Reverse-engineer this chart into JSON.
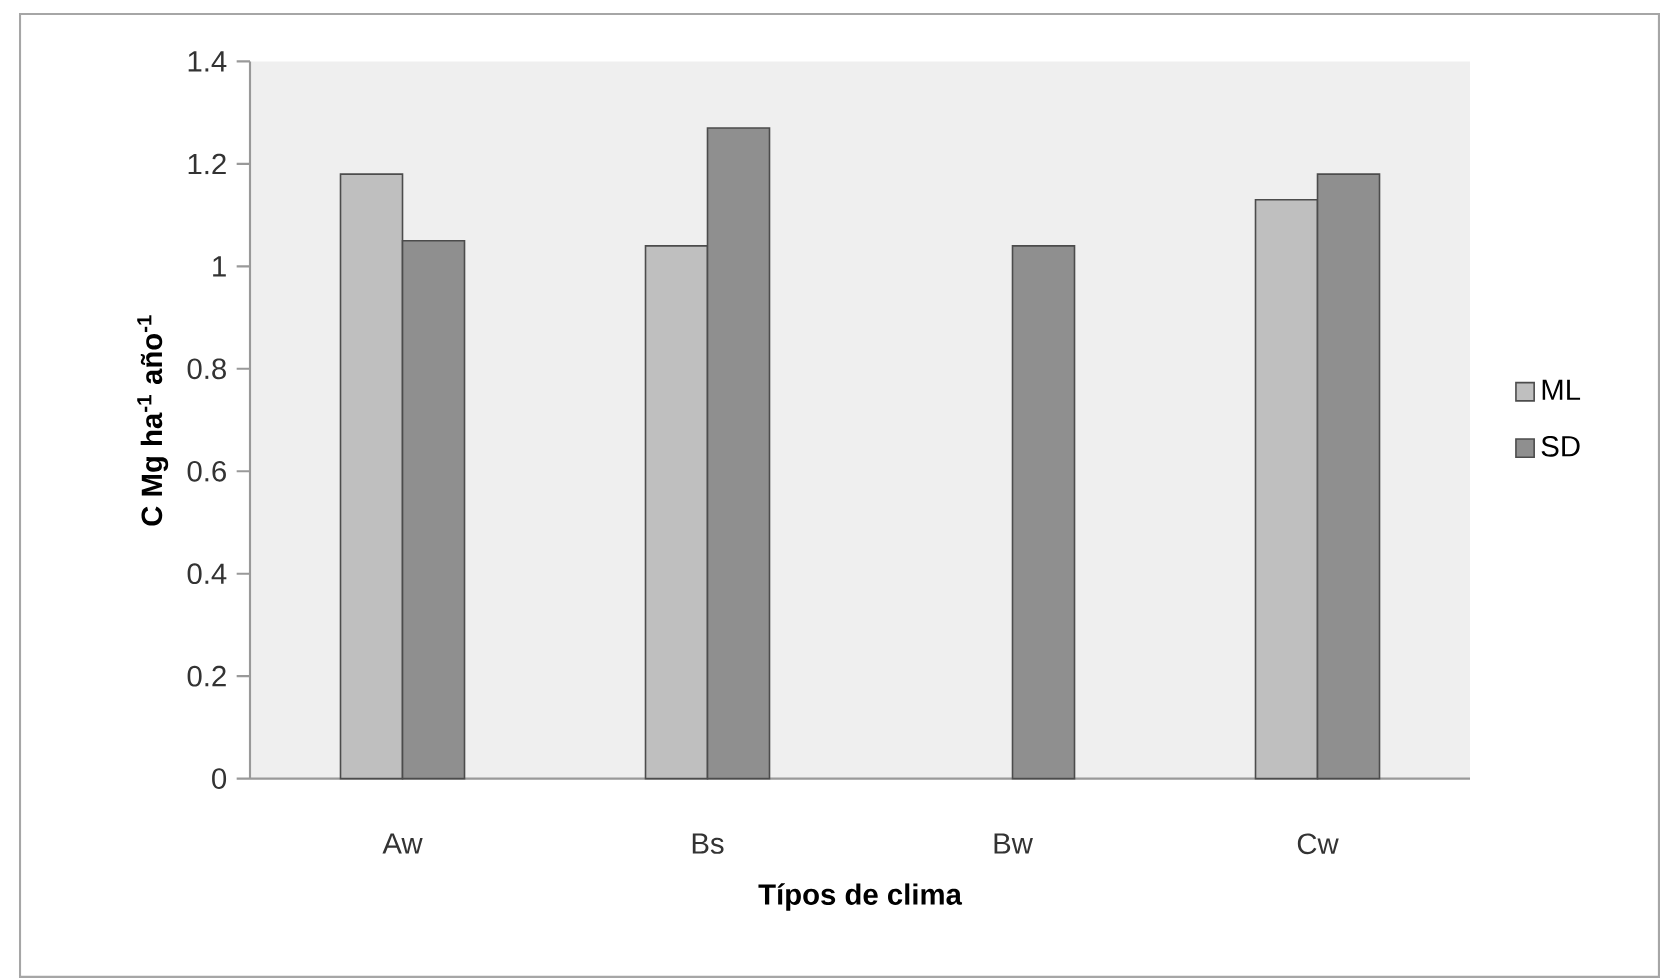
{
  "chart_data": {
    "type": "bar",
    "xlabel": "Típos de clima",
    "ylabel": "C  Mg ha$^{-1}$ año$^{-1}$",
    "categories": [
      "Aw",
      "Bs",
      "Bw",
      "Cw"
    ],
    "series": [
      {
        "name": "ML",
        "color": "#bfbfbf",
        "values": [
          1.18,
          1.04,
          null,
          1.13
        ]
      },
      {
        "name": "SD",
        "color": "#8f8f8f",
        "values": [
          1.05,
          1.27,
          1.04,
          1.18
        ]
      }
    ],
    "ylim": [
      0,
      1.4
    ],
    "yticks": [
      0,
      0.2,
      0.4,
      0.6,
      0.8,
      1,
      1.2,
      1.4
    ],
    "legend": "right"
  }
}
